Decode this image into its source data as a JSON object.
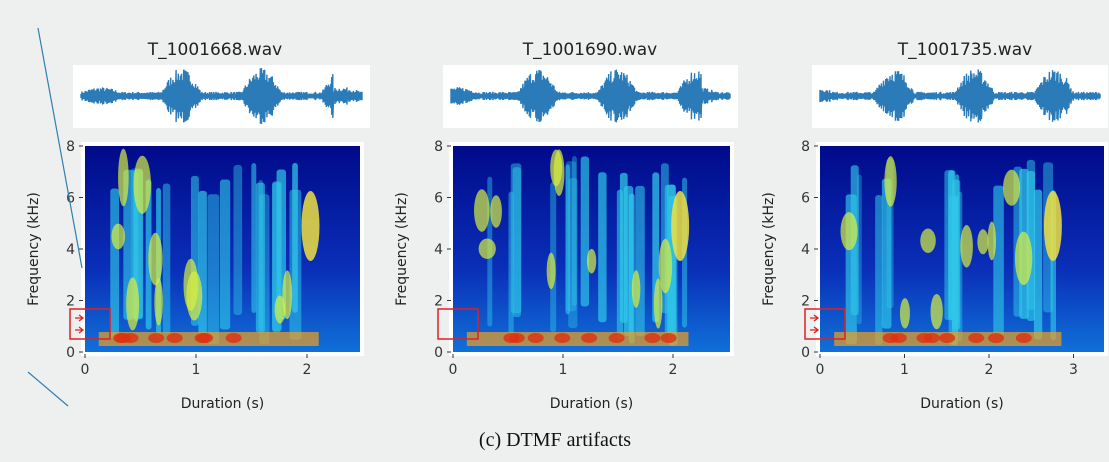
{
  "panels": [
    {
      "title": "T_1001668.wav",
      "y_label": "Frequency (kHz)",
      "x_label": "Duration (s)",
      "yticks": [
        8,
        6,
        4,
        2,
        0
      ],
      "xticks": [
        0,
        1,
        2
      ]
    },
    {
      "title": "T_1001690.wav",
      "y_label": "Frequency (kHz)",
      "x_label": "Duration (s)",
      "yticks": [
        8,
        6,
        4,
        2,
        0
      ],
      "xticks": [
        0,
        1,
        2
      ]
    },
    {
      "title": "T_1001735.wav",
      "y_label": "Frequency (kHz)",
      "x_label": "Duration (s)",
      "yticks": [
        8,
        6,
        4,
        2,
        0
      ],
      "xticks": [
        0,
        1,
        2,
        3
      ]
    }
  ],
  "caption": "(c)  DTMF artifacts"
}
